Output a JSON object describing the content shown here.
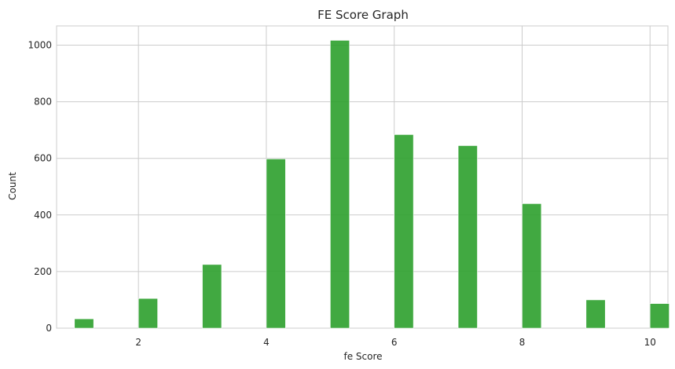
{
  "chart_data": {
    "type": "bar",
    "title": "FE Score Graph",
    "xlabel": "fe Score",
    "ylabel": "Count",
    "x": [
      1,
      2,
      3,
      4,
      5,
      6,
      7,
      8,
      9,
      10
    ],
    "values": [
      33,
      105,
      225,
      598,
      1017,
      684,
      645,
      440,
      100,
      87
    ],
    "xlim": [
      0.72,
      10.28
    ],
    "ylim": [
      0,
      1068
    ],
    "xticks": [
      2,
      4,
      6,
      8,
      10
    ],
    "yticks": [
      0,
      200,
      400,
      600,
      800,
      1000
    ],
    "bar_width": 0.3,
    "grid": true,
    "color": "#2ca02c"
  }
}
